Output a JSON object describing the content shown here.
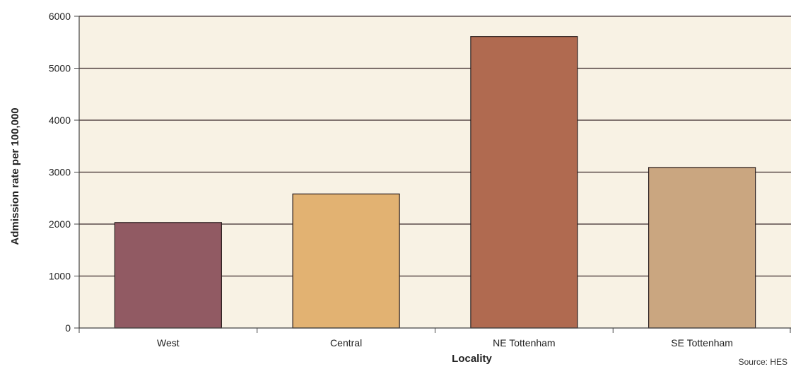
{
  "chart_data": {
    "type": "bar",
    "title": "",
    "xlabel": "Locality",
    "ylabel": "Admission rate per 100,000",
    "categories": [
      "West",
      "Central",
      "NE Tottenham",
      "SE Tottenham"
    ],
    "values": [
      2030,
      2580,
      5610,
      3090
    ],
    "ylim": [
      0,
      6000
    ],
    "yticks": [
      0,
      1000,
      2000,
      3000,
      4000,
      5000,
      6000
    ],
    "grid": true,
    "legend": "none",
    "source": "Source: HES",
    "colors": {
      "plot_background": "#f8f2e4",
      "gridline": "#3a2a2a",
      "axis": "#444444",
      "bars": [
        "#915a63",
        "#e2b272",
        "#b06a50",
        "#caa680"
      ]
    }
  }
}
